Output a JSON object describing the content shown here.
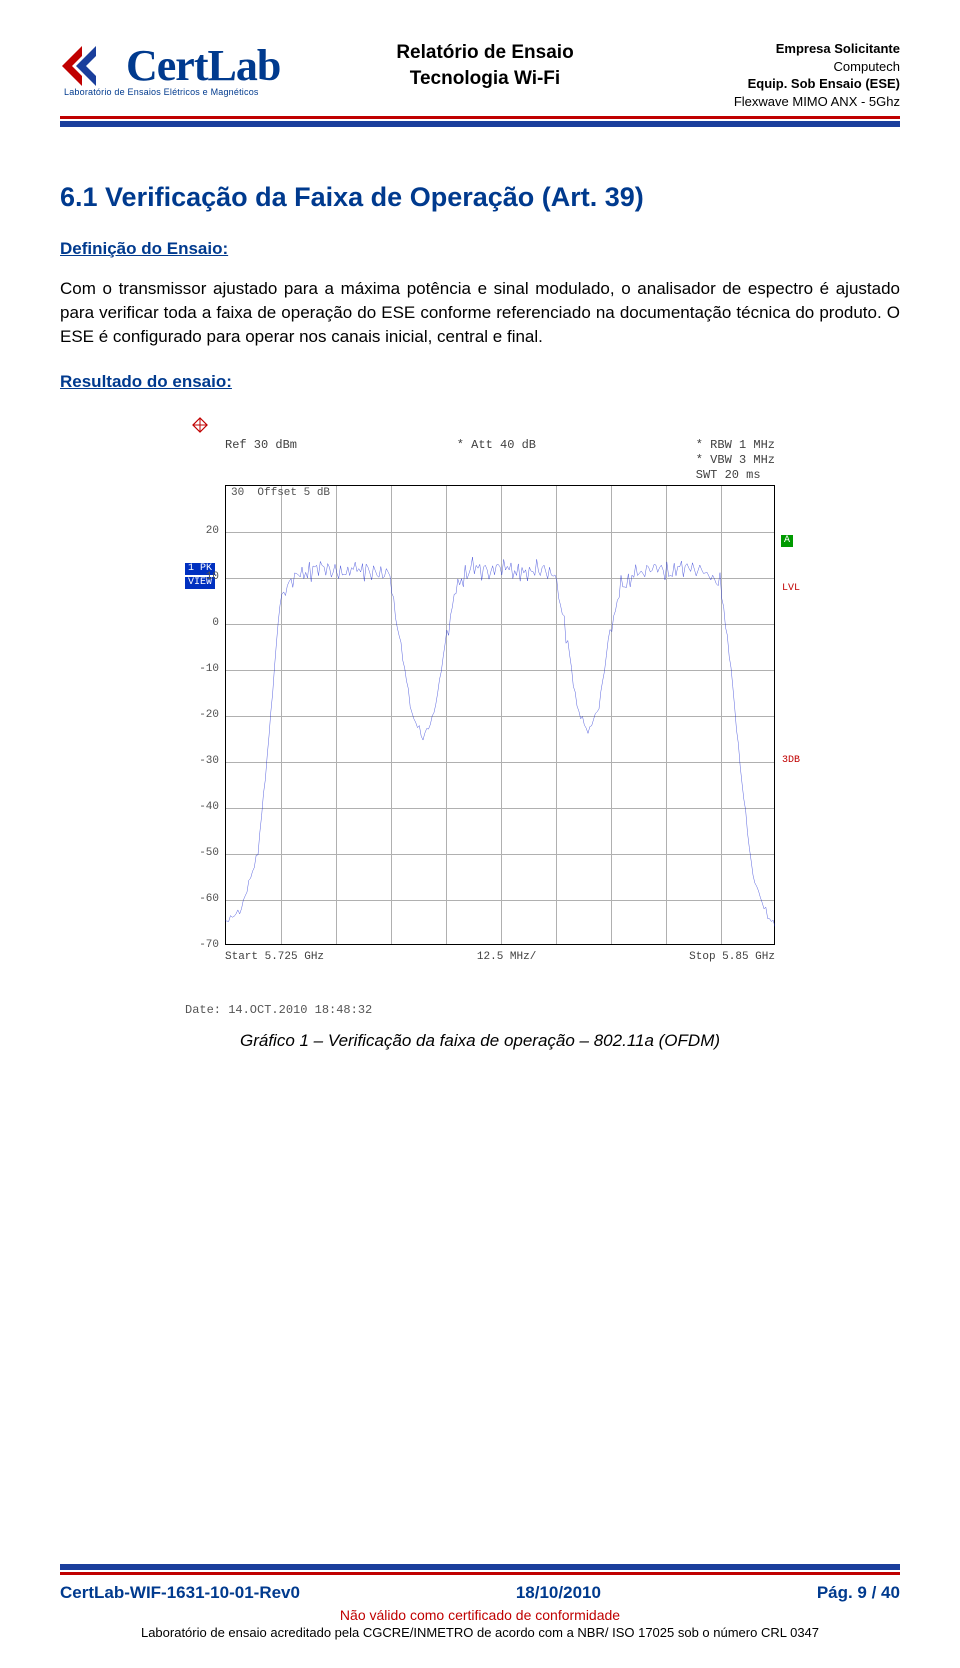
{
  "header": {
    "logo_text": "CertLab",
    "logo_sub": "Laboratório de Ensaios Elétricos e Magnéticos",
    "center_line1": "Relatório de Ensaio",
    "center_line2": "Tecnologia Wi-Fi",
    "label_company": "Empresa Solicitante",
    "company": "Computech",
    "label_equip": "Equip. Sob Ensaio (ESE)",
    "equip": "Flexwave MIMO ANX - 5Ghz"
  },
  "section": {
    "title": "6.1 Verificação da Faixa de Operação (Art. 39)",
    "sub1": "Definição do Ensaio:",
    "body": "Com o transmissor ajustado para a máxima potência e sinal modulado, o analisador de espectro é ajustado para verificar toda a faixa de operação do ESE conforme referenciado na documentação técnica do produto. O ESE é configurado para operar nos canais inicial, central e final.",
    "sub2": "Resultado do ensaio:"
  },
  "chart": {
    "type": "spectrum-line",
    "rbw": "* RBW 1 MHz",
    "vbw": "* VBW 3 MHz",
    "swt": "SWT 20 ms",
    "ref": "Ref   30 dBm",
    "att": "* Att   40 dB",
    "offset": "Offset   5 dB",
    "y_top_tick": "30",
    "y_ticks": [
      "20",
      "10",
      "0",
      "-10",
      "-20",
      "-30",
      "-40",
      "-50",
      "-60",
      "-70"
    ],
    "ylim": [
      -70,
      30
    ],
    "x_start": "Start 5.725 GHz",
    "x_center": "12.5 MHz/",
    "x_stop": "Stop 5.85 GHz",
    "badge_1pk": "1 PK",
    "badge_view": "VIEW",
    "badge_a": "A",
    "badge_lvl": "LVL",
    "badge_3db": "3DB",
    "trace_color": "#1020d0",
    "grid_color": "#b0b0b0",
    "background_color": "#ffffff",
    "date": "Date: 14.OCT.2010  18:48:32",
    "trace_points": [
      [
        0,
        -65
      ],
      [
        3,
        -62
      ],
      [
        6,
        -50
      ],
      [
        8,
        -25
      ],
      [
        10,
        5
      ],
      [
        12,
        10
      ],
      [
        15,
        11
      ],
      [
        18,
        12
      ],
      [
        21,
        11
      ],
      [
        24,
        12
      ],
      [
        27,
        11
      ],
      [
        30,
        10
      ],
      [
        32,
        -5
      ],
      [
        34,
        -20
      ],
      [
        36,
        -25
      ],
      [
        38,
        -20
      ],
      [
        40,
        -5
      ],
      [
        42,
        8
      ],
      [
        45,
        12
      ],
      [
        48,
        11
      ],
      [
        51,
        12
      ],
      [
        54,
        11
      ],
      [
        57,
        12
      ],
      [
        60,
        10
      ],
      [
        62,
        -2
      ],
      [
        64,
        -18
      ],
      [
        66,
        -24
      ],
      [
        68,
        -18
      ],
      [
        70,
        -2
      ],
      [
        72,
        8
      ],
      [
        75,
        11
      ],
      [
        78,
        12
      ],
      [
        81,
        11
      ],
      [
        84,
        12
      ],
      [
        87,
        11
      ],
      [
        90,
        9
      ],
      [
        92,
        -10
      ],
      [
        94,
        -35
      ],
      [
        96,
        -55
      ],
      [
        98,
        -62
      ],
      [
        100,
        -66
      ]
    ]
  },
  "caption": "Gráfico 1 – Verificação da faixa de operação – 802.11a (OFDM)",
  "footer": {
    "docid": "CertLab-WIF-1631-10-01-Rev0",
    "date": "18/10/2010",
    "page": "Pág. 9 / 40",
    "warn": "Não válido como certificado de conformidade",
    "note": "Laboratório de ensaio acreditado pela CGCRE/INMETRO de acordo com a NBR/ ISO 17025 sob o número CRL 0347"
  }
}
